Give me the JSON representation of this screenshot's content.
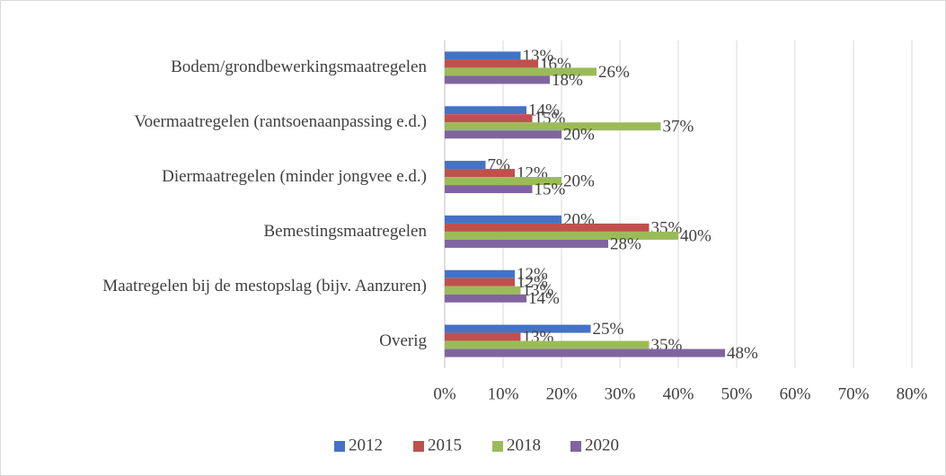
{
  "chart_data": {
    "type": "bar",
    "orientation": "horizontal",
    "categories": [
      "Bodem/grondbewerkingsmaatregelen",
      "Voermaatregelen (rantsoenaanpassing e.d.)",
      "Diermaatregelen (minder jongvee e.d.)",
      "Bemestingsmaatregelen",
      "Maatregelen bij de mestopslag (bijv. Aanzuren)",
      "Overig"
    ],
    "series": [
      {
        "name": "2012",
        "color": "#4472c4",
        "values": [
          13,
          14,
          7,
          20,
          12,
          25
        ],
        "value_labels": [
          "13%",
          "14%",
          "7%",
          "20%",
          "12%",
          "25%"
        ]
      },
      {
        "name": "2015",
        "color": "#c0504d",
        "values": [
          16,
          15,
          12,
          35,
          12,
          13
        ],
        "value_labels": [
          "16%",
          "15%",
          "12%",
          "35%",
          "12%",
          "13%"
        ]
      },
      {
        "name": "2018",
        "color": "#9bbb59",
        "values": [
          26,
          37,
          20,
          40,
          13,
          35
        ],
        "value_labels": [
          "26%",
          "37%",
          "20%",
          "40%",
          "13%",
          "35%"
        ]
      },
      {
        "name": "2020",
        "color": "#8064a2",
        "values": [
          18,
          20,
          15,
          28,
          14,
          48
        ],
        "value_labels": [
          "18%",
          "20%",
          "15%",
          "28%",
          "14%",
          "48%"
        ]
      }
    ],
    "xlim": [
      0,
      80
    ],
    "xticks": [
      {
        "value": 0,
        "label": "0%"
      },
      {
        "value": 10,
        "label": "10%"
      },
      {
        "value": 20,
        "label": "20%"
      },
      {
        "value": 30,
        "label": "30%"
      },
      {
        "value": 40,
        "label": "40%"
      },
      {
        "value": 50,
        "label": "50%"
      },
      {
        "value": 60,
        "label": "60%"
      },
      {
        "value": 70,
        "label": "70%"
      },
      {
        "value": 80,
        "label": "80%"
      }
    ],
    "grid": true,
    "legend": "bottom"
  }
}
